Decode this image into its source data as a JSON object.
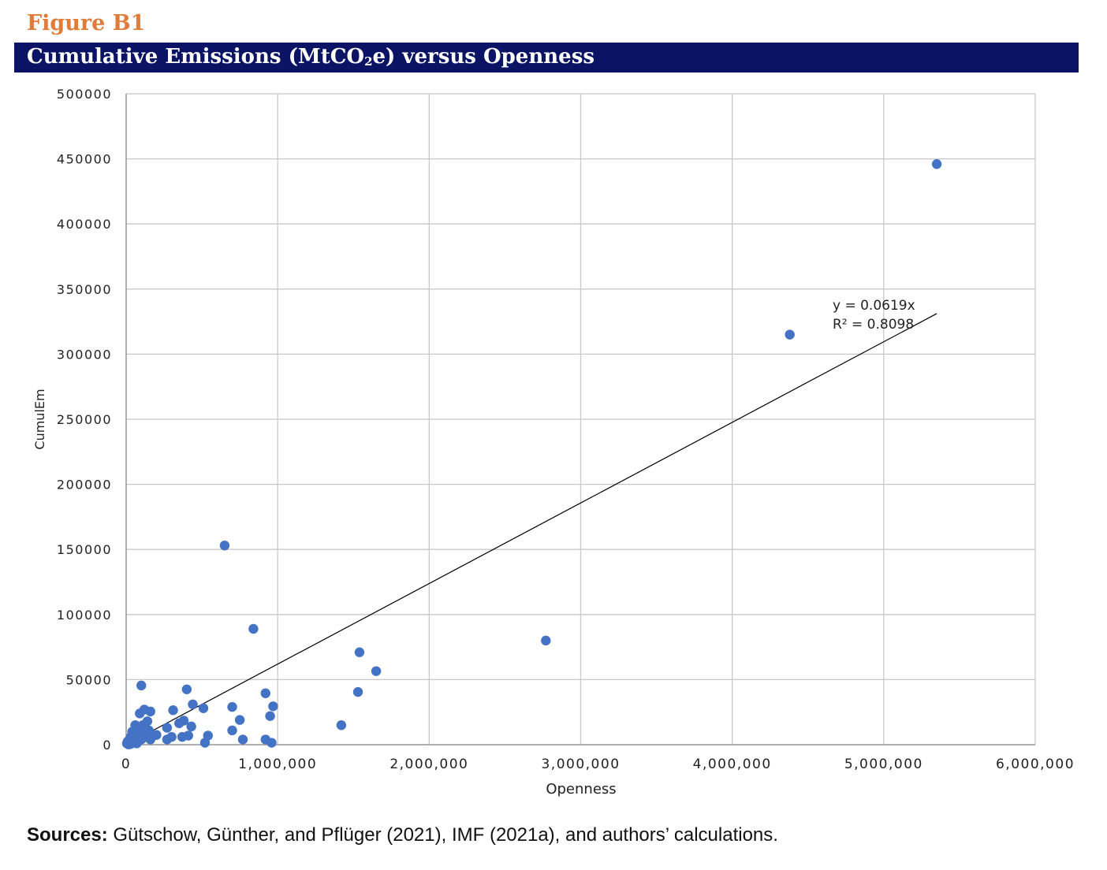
{
  "figure_label": "Figure B1",
  "title": {
    "prefix": "Cumulative Emissions (MtCO",
    "subscript": "2",
    "suffix": "e) versus Openness"
  },
  "source": {
    "label": "Sources:",
    "text": " Gütschow, Günther, and Pflüger (2021), IMF (2021a), and authors’ calculations."
  },
  "colors": {
    "accent": "#e07b39",
    "title_bar": "#0b1464",
    "point": "#4472c4",
    "trendline": "#000000",
    "grid": "#c8c8c8"
  },
  "chart_data": {
    "type": "scatter",
    "title": "",
    "xlabel": "Openness",
    "ylabel": "CumulEm",
    "xlim": [
      0,
      6000000
    ],
    "ylim": [
      0,
      500000
    ],
    "x_ticks": [
      0,
      1000000,
      2000000,
      3000000,
      4000000,
      5000000,
      6000000
    ],
    "x_tick_labels": [
      "0",
      "1,000,000",
      "2,000,000",
      "3,000,000",
      "4,000,000",
      "5,000,000",
      "6,000,000"
    ],
    "y_ticks": [
      0,
      50000,
      100000,
      150000,
      200000,
      250000,
      300000,
      350000,
      400000,
      450000,
      500000
    ],
    "y_tick_labels": [
      "0",
      "50000",
      "100000",
      "150000",
      "200000",
      "250000",
      "300000",
      "350000",
      "400000",
      "450000",
      "500000"
    ],
    "grid": true,
    "legend": "none",
    "trendline": {
      "slope": 0.0619,
      "x_range": [
        0,
        5350000
      ],
      "equation_label": "y = 0.0619x",
      "r2_label": "R² = 0.8098"
    },
    "points": [
      [
        5350000,
        446000
      ],
      [
        4380000,
        315000
      ],
      [
        2770000,
        80000
      ],
      [
        650000,
        153000
      ],
      [
        840000,
        89000
      ],
      [
        1540000,
        71000
      ],
      [
        1650000,
        56500
      ],
      [
        1530000,
        40500
      ],
      [
        1420000,
        15000
      ],
      [
        100000,
        45500
      ],
      [
        400000,
        42500
      ],
      [
        920000,
        39500
      ],
      [
        440000,
        31000
      ],
      [
        700000,
        29000
      ],
      [
        970000,
        29500
      ],
      [
        510000,
        28000
      ],
      [
        310000,
        26500
      ],
      [
        120000,
        27000
      ],
      [
        160000,
        25500
      ],
      [
        90000,
        24000
      ],
      [
        950000,
        22000
      ],
      [
        750000,
        19000
      ],
      [
        380000,
        18500
      ],
      [
        140000,
        18000
      ],
      [
        350000,
        16500
      ],
      [
        60000,
        15000
      ],
      [
        110000,
        15000
      ],
      [
        430000,
        14000
      ],
      [
        270000,
        13000
      ],
      [
        700000,
        11000
      ],
      [
        150000,
        11000
      ],
      [
        40000,
        10000
      ],
      [
        80000,
        10500
      ],
      [
        120000,
        9500
      ],
      [
        200000,
        7500
      ],
      [
        540000,
        7000
      ],
      [
        410000,
        7000
      ],
      [
        180000,
        7000
      ],
      [
        370000,
        6000
      ],
      [
        300000,
        6000
      ],
      [
        130000,
        6000
      ],
      [
        30000,
        6000
      ],
      [
        60000,
        5000
      ],
      [
        270000,
        4000
      ],
      [
        770000,
        4000
      ],
      [
        920000,
        4000
      ],
      [
        160000,
        4000
      ],
      [
        100000,
        4000
      ],
      [
        20000,
        3500
      ],
      [
        10000,
        2500
      ],
      [
        50000,
        2000
      ],
      [
        520000,
        1500
      ],
      [
        960000,
        1500
      ],
      [
        5000,
        1000
      ],
      [
        70000,
        1000
      ],
      [
        30000,
        500
      ],
      [
        15000,
        200
      ]
    ]
  }
}
